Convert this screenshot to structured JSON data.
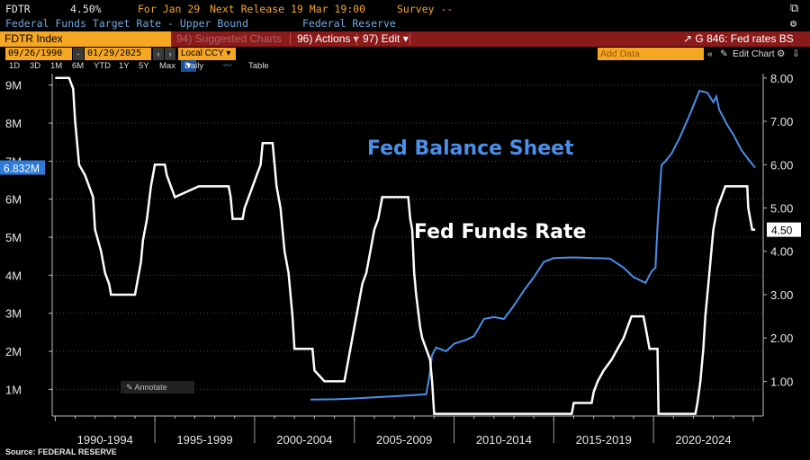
{
  "header": {
    "ticker": "FDTR",
    "last_value": "4.50%",
    "date_label": "For Jan 29",
    "next_release": "Next Release 19 Mar 19:00",
    "survey": "Survey --",
    "description": "Federal Funds Target Rate - Upper Bound",
    "source_org": "Federal Reserve"
  },
  "toolbar": {
    "index_label": "FDTR Index",
    "suggested_charts": "94) Suggested Charts",
    "actions": "96) Actions",
    "edit": "97) Edit",
    "chart_name": "G 846: Fed rates BS"
  },
  "date_bar": {
    "start_date": "09/26/1990",
    "end_date": "01/29/2025",
    "currency": "Local CCY",
    "add_data_placeholder": "Add Data",
    "edit_chart": "Edit Chart"
  },
  "period_bar": {
    "periods": [
      "1D",
      "3D",
      "1M",
      "6M",
      "YTD",
      "1Y",
      "5Y",
      "Max"
    ],
    "frequency": "Daily",
    "table_label": "Table"
  },
  "footer": {
    "source": "Source: FEDERAL RESERVE"
  },
  "chart_data": {
    "type": "line",
    "title": "",
    "annotation_label": "Annotate",
    "x_categories": [
      "1990-1994",
      "1995-1999",
      "2000-2004",
      "2005-2009",
      "2010-2014",
      "2015-2019",
      "2020-2024"
    ],
    "left_axis": {
      "ticks": [
        "1M",
        "2M",
        "3M",
        "4M",
        "5M",
        "6M",
        "7M",
        "8M",
        "9M"
      ],
      "range": [
        0.3,
        9.3
      ],
      "unit": "M (millions USD)"
    },
    "right_axis": {
      "ticks": [
        "1.00",
        "2.00",
        "3.00",
        "4.00",
        "5.00",
        "6.00",
        "7.00",
        "8.00"
      ],
      "range": [
        0.2,
        8.1
      ]
    },
    "series": [
      {
        "name": "Fed Balance Sheet",
        "axis": "left",
        "color": "#4a8fe8",
        "last_label": "6.832M",
        "points": [
          [
            2002.8,
            0.73
          ],
          [
            2004.0,
            0.74
          ],
          [
            2005.0,
            0.76
          ],
          [
            2006.0,
            0.79
          ],
          [
            2007.0,
            0.82
          ],
          [
            2008.0,
            0.85
          ],
          [
            2008.6,
            0.87
          ],
          [
            2008.75,
            1.3
          ],
          [
            2008.9,
            1.9
          ],
          [
            2009.1,
            2.1
          ],
          [
            2009.6,
            2.0
          ],
          [
            2010.0,
            2.2
          ],
          [
            2010.6,
            2.3
          ],
          [
            2011.0,
            2.4
          ],
          [
            2011.5,
            2.85
          ],
          [
            2012.0,
            2.9
          ],
          [
            2012.5,
            2.85
          ],
          [
            2013.0,
            3.2
          ],
          [
            2013.5,
            3.6
          ],
          [
            2014.0,
            3.95
          ],
          [
            2014.5,
            4.35
          ],
          [
            2015.0,
            4.45
          ],
          [
            2016.0,
            4.47
          ],
          [
            2017.0,
            4.45
          ],
          [
            2017.8,
            4.44
          ],
          [
            2018.5,
            4.2
          ],
          [
            2019.0,
            3.95
          ],
          [
            2019.6,
            3.8
          ],
          [
            2019.9,
            4.1
          ],
          [
            2020.1,
            4.2
          ],
          [
            2020.2,
            5.3
          ],
          [
            2020.4,
            6.9
          ],
          [
            2020.6,
            7.0
          ],
          [
            2020.9,
            7.2
          ],
          [
            2021.3,
            7.6
          ],
          [
            2021.8,
            8.2
          ],
          [
            2022.3,
            8.85
          ],
          [
            2022.7,
            8.8
          ],
          [
            2023.0,
            8.55
          ],
          [
            2023.15,
            8.7
          ],
          [
            2023.3,
            8.35
          ],
          [
            2023.7,
            7.95
          ],
          [
            2024.0,
            7.7
          ],
          [
            2024.4,
            7.3
          ],
          [
            2024.9,
            6.95
          ],
          [
            2025.1,
            6.832
          ]
        ]
      },
      {
        "name": "Fed Funds Rate",
        "axis": "right",
        "color": "#ffffff",
        "last_label": "4.50",
        "points": [
          [
            1990.0,
            8.0
          ],
          [
            1990.7,
            8.0
          ],
          [
            1990.9,
            7.75
          ],
          [
            1991.0,
            7.0
          ],
          [
            1991.2,
            6.0
          ],
          [
            1991.5,
            5.75
          ],
          [
            1991.9,
            5.25
          ],
          [
            1992.0,
            4.5
          ],
          [
            1992.3,
            4.0
          ],
          [
            1992.5,
            3.5
          ],
          [
            1992.7,
            3.25
          ],
          [
            1992.8,
            3.0
          ],
          [
            1994.0,
            3.0
          ],
          [
            1994.1,
            3.25
          ],
          [
            1994.3,
            3.75
          ],
          [
            1994.4,
            4.25
          ],
          [
            1994.6,
            4.75
          ],
          [
            1994.8,
            5.5
          ],
          [
            1995.0,
            6.0
          ],
          [
            1995.5,
            6.0
          ],
          [
            1995.6,
            5.75
          ],
          [
            1996.0,
            5.25
          ],
          [
            1997.2,
            5.5
          ],
          [
            1998.7,
            5.5
          ],
          [
            1998.8,
            5.25
          ],
          [
            1998.9,
            4.75
          ],
          [
            1999.4,
            4.75
          ],
          [
            1999.5,
            5.0
          ],
          [
            1999.7,
            5.25
          ],
          [
            1999.9,
            5.5
          ],
          [
            2000.1,
            5.75
          ],
          [
            2000.3,
            6.0
          ],
          [
            2000.4,
            6.5
          ],
          [
            2000.9,
            6.5
          ],
          [
            2001.0,
            6.0
          ],
          [
            2001.1,
            5.5
          ],
          [
            2001.3,
            5.0
          ],
          [
            2001.4,
            4.5
          ],
          [
            2001.5,
            4.0
          ],
          [
            2001.6,
            3.75
          ],
          [
            2001.7,
            3.5
          ],
          [
            2001.8,
            3.0
          ],
          [
            2001.9,
            2.5
          ],
          [
            2002.0,
            1.75
          ],
          [
            2002.9,
            1.75
          ],
          [
            2003.0,
            1.25
          ],
          [
            2003.5,
            1.0
          ],
          [
            2004.5,
            1.0
          ],
          [
            2004.6,
            1.25
          ],
          [
            2004.7,
            1.5
          ],
          [
            2004.8,
            1.75
          ],
          [
            2004.9,
            2.0
          ],
          [
            2005.0,
            2.25
          ],
          [
            2005.2,
            2.75
          ],
          [
            2005.4,
            3.25
          ],
          [
            2005.6,
            3.5
          ],
          [
            2005.8,
            4.0
          ],
          [
            2006.0,
            4.5
          ],
          [
            2006.2,
            4.75
          ],
          [
            2006.4,
            5.25
          ],
          [
            2007.7,
            5.25
          ],
          [
            2007.8,
            4.75
          ],
          [
            2007.9,
            4.5
          ],
          [
            2008.0,
            3.5
          ],
          [
            2008.1,
            3.0
          ],
          [
            2008.3,
            2.25
          ],
          [
            2008.4,
            2.0
          ],
          [
            2008.8,
            1.5
          ],
          [
            2008.9,
            1.0
          ],
          [
            2009.0,
            0.25
          ],
          [
            2015.9,
            0.25
          ],
          [
            2016.0,
            0.5
          ],
          [
            2016.9,
            0.5
          ],
          [
            2017.0,
            0.75
          ],
          [
            2017.2,
            1.0
          ],
          [
            2017.5,
            1.25
          ],
          [
            2017.9,
            1.5
          ],
          [
            2018.2,
            1.75
          ],
          [
            2018.5,
            2.0
          ],
          [
            2018.7,
            2.25
          ],
          [
            2018.9,
            2.5
          ],
          [
            2019.5,
            2.5
          ],
          [
            2019.6,
            2.25
          ],
          [
            2019.7,
            2.0
          ],
          [
            2019.8,
            1.75
          ],
          [
            2020.2,
            1.75
          ],
          [
            2020.25,
            0.25
          ],
          [
            2022.1,
            0.25
          ],
          [
            2022.2,
            0.5
          ],
          [
            2022.35,
            1.0
          ],
          [
            2022.5,
            1.75
          ],
          [
            2022.6,
            2.5
          ],
          [
            2022.75,
            3.25
          ],
          [
            2022.9,
            4.0
          ],
          [
            2023.0,
            4.5
          ],
          [
            2023.1,
            4.75
          ],
          [
            2023.2,
            5.0
          ],
          [
            2023.4,
            5.25
          ],
          [
            2023.6,
            5.5
          ],
          [
            2024.7,
            5.5
          ],
          [
            2024.75,
            5.0
          ],
          [
            2024.85,
            4.75
          ],
          [
            2024.95,
            4.5
          ],
          [
            2025.1,
            4.5
          ]
        ]
      }
    ],
    "annotations": [
      "Fed Balance Sheet",
      "Fed Funds Rate"
    ]
  }
}
